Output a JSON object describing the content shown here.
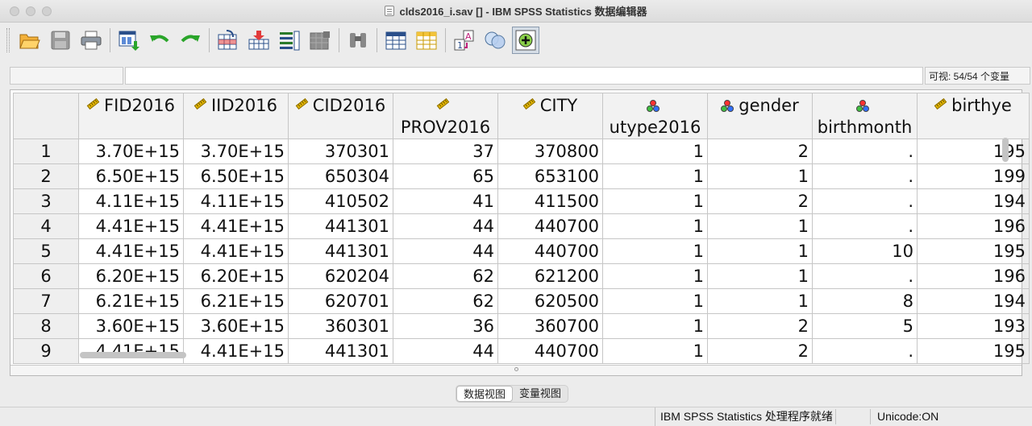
{
  "window": {
    "title": "clds2016_i.sav [] - IBM SPSS Statistics 数据编辑器"
  },
  "toolbar": {
    "items": [
      "open-file",
      "save",
      "print",
      "recall-dialog",
      "undo",
      "redo",
      "go-to-case",
      "go-to-variable",
      "variables",
      "run-descriptive",
      "find",
      "insert-cases",
      "insert-variable",
      "split-file",
      "weight-cases",
      "select-cases",
      "value-labels",
      "use-variable-sets",
      "show-all-variables",
      "spell-check"
    ]
  },
  "info_bar": {
    "cell_ref": "",
    "cell_value": "",
    "visible_vars": "可视: 54/54 个变量"
  },
  "grid": {
    "columns": [
      {
        "name": "FID2016",
        "measure": "scale"
      },
      {
        "name": "IID2016",
        "measure": "scale"
      },
      {
        "name": "CID2016",
        "measure": "scale"
      },
      {
        "name": "PROV2016",
        "measure": "scale"
      },
      {
        "name": "CITY",
        "measure": "scale"
      },
      {
        "name": "utype2016",
        "measure": "nominal"
      },
      {
        "name": "gender",
        "measure": "nominal"
      },
      {
        "name": "birthmonth",
        "measure": "nominal"
      },
      {
        "name": "birthye",
        "measure": "scale"
      }
    ],
    "rows": [
      {
        "n": "1",
        "cells": [
          "3.70E+15",
          "3.70E+15",
          "370301",
          "37",
          "370800",
          "1",
          "2",
          ".",
          "195"
        ]
      },
      {
        "n": "2",
        "cells": [
          "6.50E+15",
          "6.50E+15",
          "650304",
          "65",
          "653100",
          "1",
          "1",
          ".",
          "199"
        ]
      },
      {
        "n": "3",
        "cells": [
          "4.11E+15",
          "4.11E+15",
          "410502",
          "41",
          "411500",
          "1",
          "2",
          ".",
          "194"
        ]
      },
      {
        "n": "4",
        "cells": [
          "4.41E+15",
          "4.41E+15",
          "441301",
          "44",
          "440700",
          "1",
          "1",
          ".",
          "196"
        ]
      },
      {
        "n": "5",
        "cells": [
          "4.41E+15",
          "4.41E+15",
          "441301",
          "44",
          "440700",
          "1",
          "1",
          "10",
          "195"
        ]
      },
      {
        "n": "6",
        "cells": [
          "6.20E+15",
          "6.20E+15",
          "620204",
          "62",
          "621200",
          "1",
          "1",
          ".",
          "196"
        ]
      },
      {
        "n": "7",
        "cells": [
          "6.21E+15",
          "6.21E+15",
          "620701",
          "62",
          "620500",
          "1",
          "1",
          "8",
          "194"
        ]
      },
      {
        "n": "8",
        "cells": [
          "3.60E+15",
          "3.60E+15",
          "360301",
          "36",
          "360700",
          "1",
          "2",
          "5",
          "193"
        ]
      },
      {
        "n": "9",
        "cells": [
          "4.41E+15",
          "4.41E+15",
          "441301",
          "44",
          "440700",
          "1",
          "2",
          ".",
          "195"
        ]
      }
    ]
  },
  "tabs": {
    "data_view": "数据视图",
    "variable_view": "变量视图"
  },
  "status": {
    "processor": "IBM SPSS Statistics 处理程序就绪",
    "unicode": "Unicode:ON"
  }
}
